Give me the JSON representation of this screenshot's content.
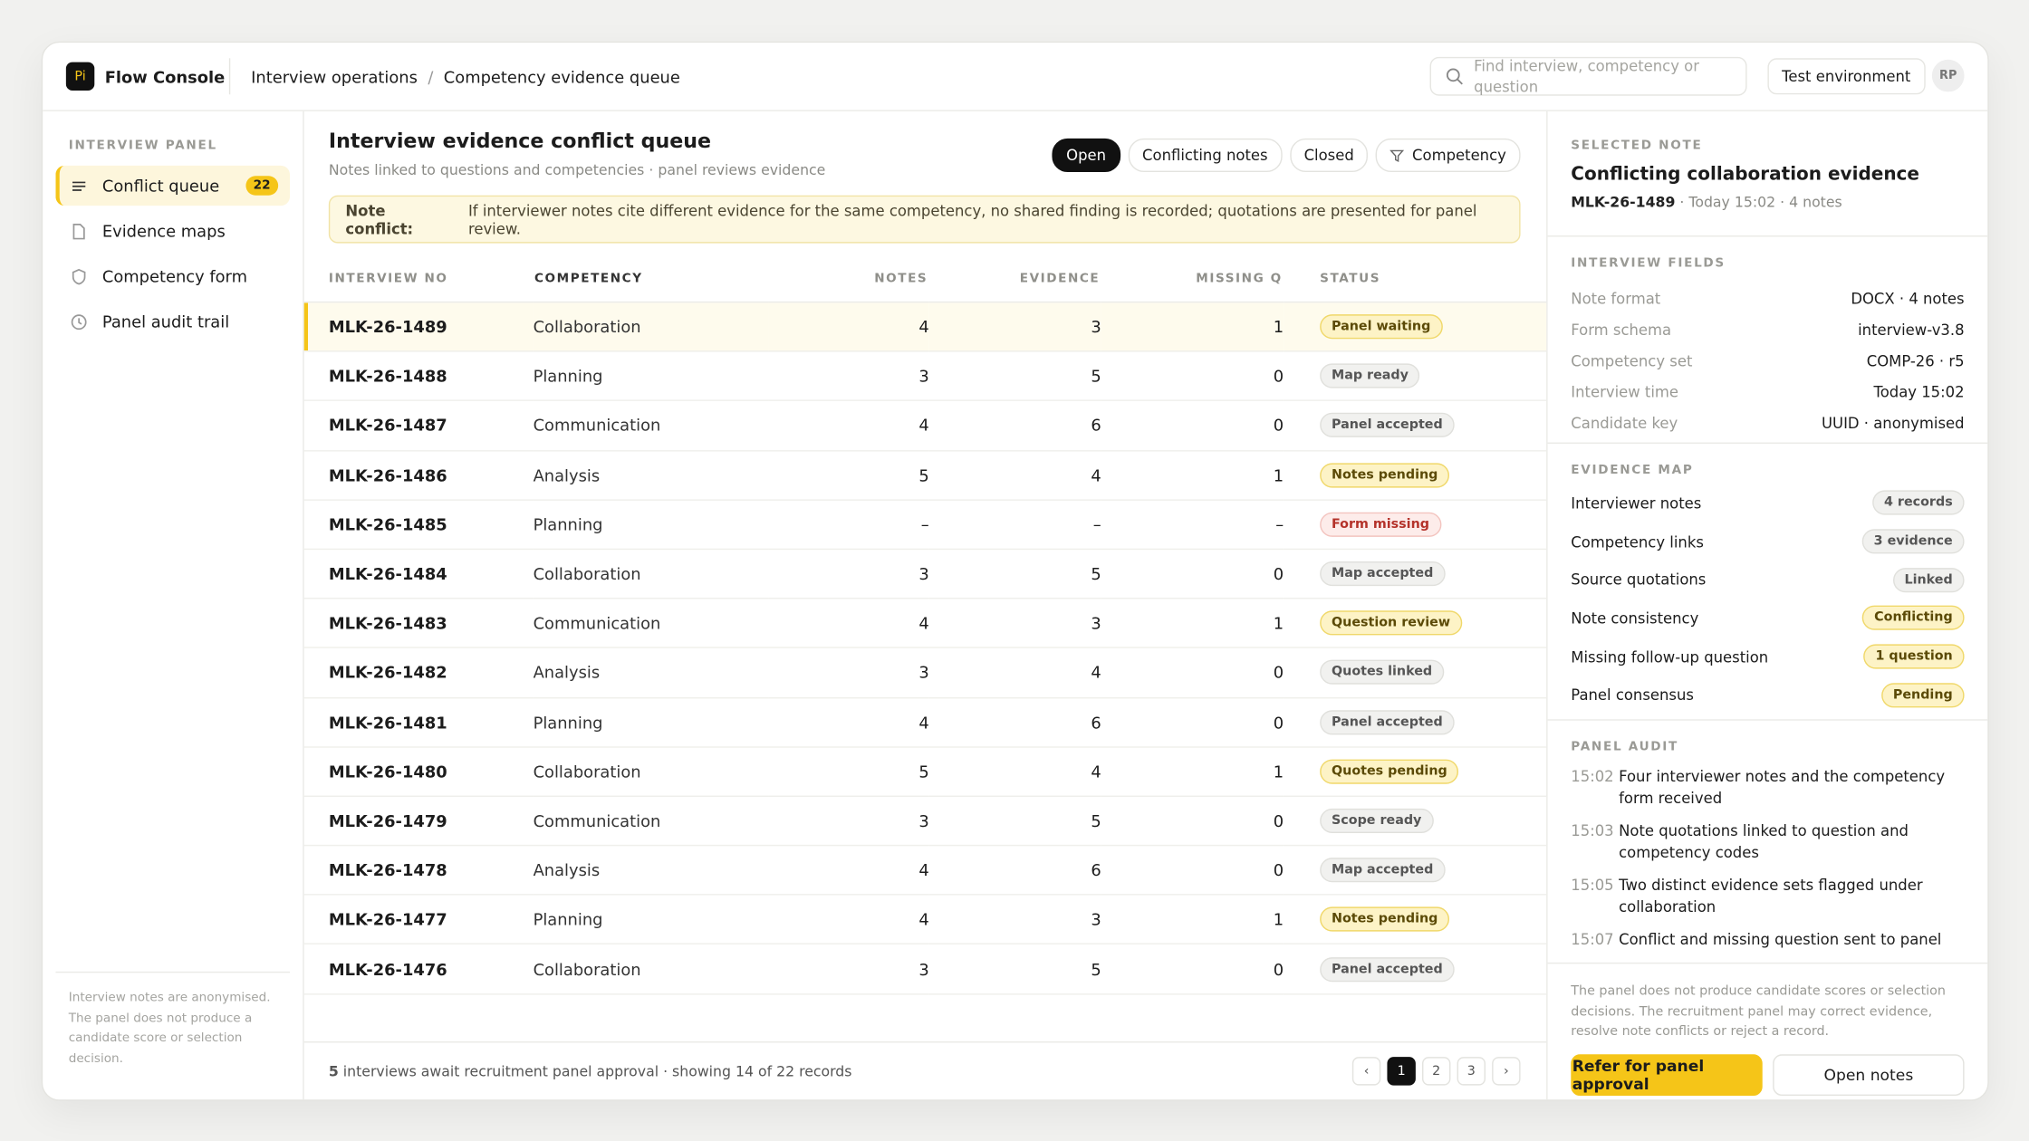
{
  "app": {
    "logo": "Pi",
    "name": "Flow Console"
  },
  "breadcrumb": [
    "Interview operations",
    "/",
    "Competency evidence queue"
  ],
  "search_placeholder": "Find interview, competency or question",
  "environment": "Test environment",
  "avatar": "RP",
  "sidebar": {
    "section": "INTERVIEW PANEL",
    "items": [
      {
        "label": "Conflict queue",
        "badge": "22",
        "active": true
      },
      {
        "label": "Evidence maps"
      },
      {
        "label": "Competency form"
      },
      {
        "label": "Panel audit trail"
      }
    ],
    "footnote": "Interview notes are anonymised. The panel does not produce a candidate score or selection decision."
  },
  "queue": {
    "title": "Interview evidence conflict queue",
    "subtitle": "Notes linked to questions and competencies · panel reviews evidence",
    "filters": [
      {
        "label": "Open",
        "active": true
      },
      {
        "label": "Conflicting notes"
      },
      {
        "label": "Closed"
      },
      {
        "label": "Competency",
        "icon": "filter"
      }
    ],
    "alert": {
      "label": "Note conflict:",
      "text": "If interviewer notes cite different evidence for the same competency, no shared finding is recorded; quotations are presented for panel review."
    },
    "columns": [
      "INTERVIEW NO",
      "COMPETENCY",
      "NOTES",
      "EVIDENCE",
      "MISSING Q",
      "STATUS"
    ],
    "rows": [
      {
        "id": "MLK-26-1489",
        "competency": "Collaboration",
        "notes": "4",
        "evidence": "3",
        "missing": "1",
        "status": "Panel waiting",
        "tone": "warn",
        "selected": true
      },
      {
        "id": "MLK-26-1488",
        "competency": "Planning",
        "notes": "3",
        "evidence": "5",
        "missing": "0",
        "status": "Map ready",
        "tone": "neutral"
      },
      {
        "id": "MLK-26-1487",
        "competency": "Communication",
        "notes": "4",
        "evidence": "6",
        "missing": "0",
        "status": "Panel accepted",
        "tone": "neutral"
      },
      {
        "id": "MLK-26-1486",
        "competency": "Analysis",
        "notes": "5",
        "evidence": "4",
        "missing": "1",
        "status": "Notes pending",
        "tone": "warn"
      },
      {
        "id": "MLK-26-1485",
        "competency": "Planning",
        "notes": "–",
        "evidence": "–",
        "missing": "–",
        "status": "Form missing",
        "tone": "bad"
      },
      {
        "id": "MLK-26-1484",
        "competency": "Collaboration",
        "notes": "3",
        "evidence": "5",
        "missing": "0",
        "status": "Map accepted",
        "tone": "neutral"
      },
      {
        "id": "MLK-26-1483",
        "competency": "Communication",
        "notes": "4",
        "evidence": "3",
        "missing": "1",
        "status": "Question review",
        "tone": "warn"
      },
      {
        "id": "MLK-26-1482",
        "competency": "Analysis",
        "notes": "3",
        "evidence": "4",
        "missing": "0",
        "status": "Quotes linked",
        "tone": "neutral"
      },
      {
        "id": "MLK-26-1481",
        "competency": "Planning",
        "notes": "4",
        "evidence": "6",
        "missing": "0",
        "status": "Panel accepted",
        "tone": "neutral"
      },
      {
        "id": "MLK-26-1480",
        "competency": "Collaboration",
        "notes": "5",
        "evidence": "4",
        "missing": "1",
        "status": "Quotes pending",
        "tone": "warn"
      },
      {
        "id": "MLK-26-1479",
        "competency": "Communication",
        "notes": "3",
        "evidence": "5",
        "missing": "0",
        "status": "Scope ready",
        "tone": "neutral"
      },
      {
        "id": "MLK-26-1478",
        "competency": "Analysis",
        "notes": "4",
        "evidence": "6",
        "missing": "0",
        "status": "Map accepted",
        "tone": "neutral"
      },
      {
        "id": "MLK-26-1477",
        "competency": "Planning",
        "notes": "4",
        "evidence": "3",
        "missing": "1",
        "status": "Notes pending",
        "tone": "warn"
      },
      {
        "id": "MLK-26-1476",
        "competency": "Collaboration",
        "notes": "3",
        "evidence": "5",
        "missing": "0",
        "status": "Panel accepted",
        "tone": "neutral"
      }
    ],
    "footer": {
      "count": "5",
      "text": "interviews await recruitment panel approval · showing 14 of 22 records"
    },
    "pages": [
      {
        "label": "‹"
      },
      {
        "label": "1",
        "active": true
      },
      {
        "label": "2"
      },
      {
        "label": "3"
      },
      {
        "label": "›"
      }
    ]
  },
  "detail": {
    "section": "SELECTED NOTE",
    "title": "Conflicting collaboration evidence",
    "id": "MLK-26-1489",
    "meta": "Today 15:02 · 4 notes",
    "fields_section": "INTERVIEW FIELDS",
    "fields": [
      [
        "Note format",
        "DOCX · 4 notes"
      ],
      [
        "Form schema",
        "interview-v3.8"
      ],
      [
        "Competency set",
        "COMP-26 · r5"
      ],
      [
        "Interview time",
        "Today 15:02"
      ],
      [
        "Candidate key",
        "UUID · anonymised"
      ]
    ],
    "map_section": "EVIDENCE MAP",
    "map": [
      {
        "label": "Interviewer notes",
        "value": "4 records",
        "tone": "neutral"
      },
      {
        "label": "Competency links",
        "value": "3 evidence",
        "tone": "neutral"
      },
      {
        "label": "Source quotations",
        "value": "Linked",
        "tone": "neutral"
      },
      {
        "label": "Note consistency",
        "value": "Conflicting",
        "tone": "warn"
      },
      {
        "label": "Missing follow-up question",
        "value": "1 question",
        "tone": "warn"
      },
      {
        "label": "Panel consensus",
        "value": "Pending",
        "tone": "warn"
      }
    ],
    "audit_section": "PANEL AUDIT",
    "audit": [
      [
        "15:02",
        "Four interviewer notes and the competency form received"
      ],
      [
        "15:03",
        "Note quotations linked to question and competency codes"
      ],
      [
        "15:05",
        "Two distinct evidence sets flagged under collaboration"
      ],
      [
        "15:07",
        "Conflict and missing question sent to panel"
      ]
    ],
    "footnote": "The panel does not produce candidate scores or selection decisions. The recruitment panel may correct evidence, resolve note conflicts or reject a record.",
    "actions": [
      "Refer for panel approval",
      "Open notes"
    ]
  }
}
